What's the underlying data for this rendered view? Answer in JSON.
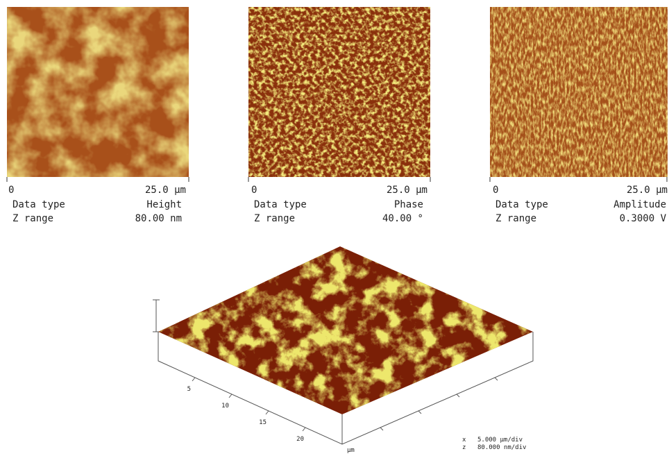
{
  "panels": [
    {
      "scale_start": "0",
      "scale_end": "25.0 µm",
      "data_type_label": "Data type",
      "data_type": "Height",
      "z_range_label": "Z range",
      "z_range": "80.00 nm"
    },
    {
      "scale_start": "0",
      "scale_end": "25.0 µm",
      "data_type_label": "Data type",
      "data_type": "Phase",
      "z_range_label": "Z range",
      "z_range": "40.00 °"
    },
    {
      "scale_start": "0",
      "scale_end": "25.0 µm",
      "data_type_label": "Data type",
      "data_type": "Amplitude",
      "z_range_label": "Z range",
      "z_range": "0.3000 V"
    }
  ],
  "surface_3d": {
    "axis_ticks": [
      "5",
      "10",
      "15",
      "20"
    ],
    "axis_unit": "µm",
    "scale_x_label": "x",
    "scale_x": "5.000 µm/div",
    "scale_z_label": "z",
    "scale_z": "80.000 nm/div"
  }
}
